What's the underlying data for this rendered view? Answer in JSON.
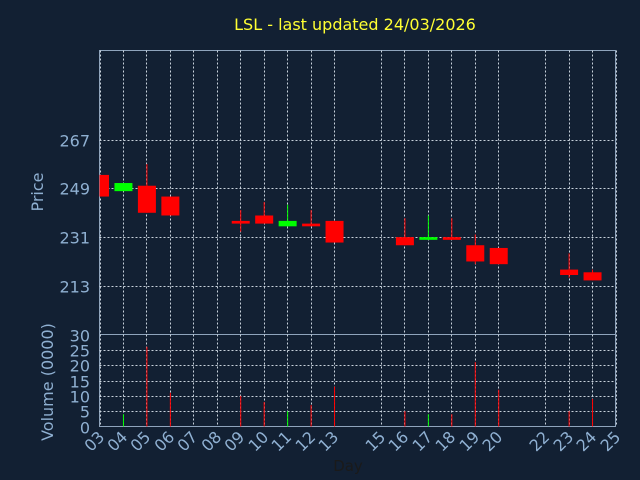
{
  "chart_data": [
    {
      "type": "candlestick",
      "title": "LSL - last updated 24/03/2026",
      "ylabel": "Price",
      "ylim": [
        195,
        300
      ],
      "yticks": [
        213,
        231,
        249,
        267
      ],
      "grid": true,
      "colors": {
        "up": "#00ff00",
        "down": "#ff0000"
      },
      "candles": [
        {
          "day": 3,
          "open": 254,
          "high": 254,
          "low": 246,
          "close": 246
        },
        {
          "day": 4,
          "open": 248,
          "high": 251,
          "low": 248,
          "close": 251
        },
        {
          "day": 5,
          "open": 250,
          "high": 258,
          "low": 240,
          "close": 240
        },
        {
          "day": 6,
          "open": 246,
          "high": 246,
          "low": 239,
          "close": 239
        },
        {
          "day": 9,
          "open": 237,
          "high": 241,
          "low": 233,
          "close": 236
        },
        {
          "day": 10,
          "open": 239,
          "high": 244,
          "low": 236,
          "close": 236
        },
        {
          "day": 11,
          "open": 235,
          "high": 243,
          "low": 235,
          "close": 237
        },
        {
          "day": 12,
          "open": 236,
          "high": 241,
          "low": 235,
          "close": 235
        },
        {
          "day": 13,
          "open": 237,
          "high": 237,
          "low": 229,
          "close": 229
        },
        {
          "day": 16,
          "open": 231,
          "high": 238,
          "low": 228,
          "close": 228
        },
        {
          "day": 17,
          "open": 230,
          "high": 239,
          "low": 230,
          "close": 231
        },
        {
          "day": 18,
          "open": 231,
          "high": 238,
          "low": 230,
          "close": 230
        },
        {
          "day": 19,
          "open": 228,
          "high": 232,
          "low": 221,
          "close": 222
        },
        {
          "day": 20,
          "open": 227,
          "high": 227,
          "low": 221,
          "close": 221
        },
        {
          "day": 23,
          "open": 219,
          "high": 225,
          "low": 216,
          "close": 217
        },
        {
          "day": 24,
          "open": 218,
          "high": 219,
          "low": 215,
          "close": 215
        }
      ]
    },
    {
      "type": "bar",
      "xlabel": "Day",
      "ylabel": "Volume (0000)",
      "ylim": [
        0,
        30
      ],
      "yticks": [
        0,
        5,
        10,
        15,
        20,
        25,
        30
      ],
      "categories": [
        "03",
        "04",
        "05",
        "06",
        "07",
        "08",
        "09",
        "10",
        "11",
        "12",
        "13",
        "15",
        "16",
        "17",
        "18",
        "19",
        "20",
        "22",
        "23",
        "24",
        "25"
      ],
      "volumes": [
        {
          "day": 4,
          "value": 4,
          "up": true
        },
        {
          "day": 5,
          "value": 26,
          "up": false
        },
        {
          "day": 6,
          "value": 11,
          "up": false
        },
        {
          "day": 9,
          "value": 10,
          "up": false
        },
        {
          "day": 10,
          "value": 8,
          "up": false
        },
        {
          "day": 11,
          "value": 5,
          "up": true
        },
        {
          "day": 12,
          "value": 7,
          "up": false
        },
        {
          "day": 13,
          "value": 13,
          "up": false
        },
        {
          "day": 16,
          "value": 5,
          "up": false
        },
        {
          "day": 17,
          "value": 4,
          "up": true
        },
        {
          "day": 18,
          "value": 4,
          "up": false
        },
        {
          "day": 19,
          "value": 21,
          "up": false
        },
        {
          "day": 20,
          "value": 12,
          "up": false
        },
        {
          "day": 23,
          "value": 5,
          "up": false
        },
        {
          "day": 24,
          "value": 9,
          "up": false
        }
      ]
    }
  ]
}
